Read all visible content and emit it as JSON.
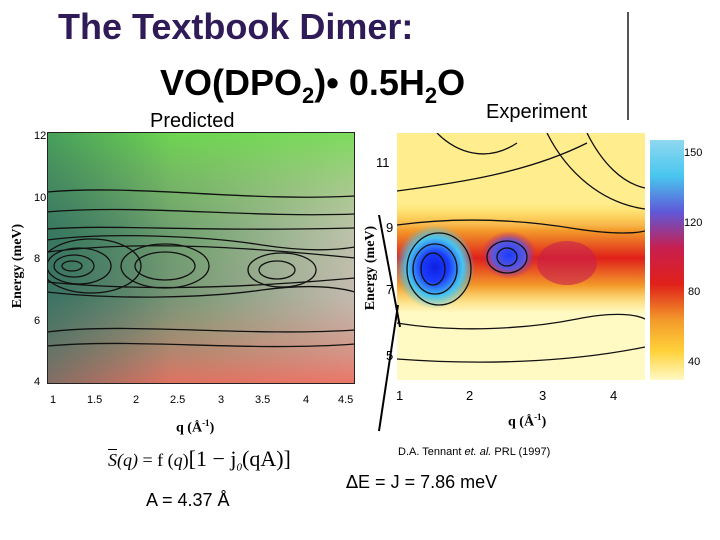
{
  "slide": {
    "title_line1": "The Textbook Dimer:",
    "title_line2_parts": [
      "VO(DPO",
      "2",
      ")• 0.5H",
      "2",
      "O"
    ],
    "predicted_label": "Predicted",
    "experiment_label": "Experiment"
  },
  "left_plot": {
    "ylabel": "Energy (meV)",
    "xlabel_main": "q (Å",
    "xlabel_sup": "-1",
    "xlabel_end": ")",
    "yticks": [
      "12",
      "10",
      "8",
      "6",
      "4"
    ],
    "xticks": [
      "1",
      "1.5",
      "2",
      "2.5",
      "3",
      "3.5",
      "4",
      "4.5"
    ]
  },
  "right_plot": {
    "ylabel": "Energy (meV)",
    "xlabel_main": "q (Å",
    "xlabel_sup": "-1",
    "xlabel_end": ")",
    "yticks": [
      "11",
      "9",
      "7",
      "5"
    ],
    "xticks": [
      "1",
      "2",
      "3",
      "4"
    ],
    "colorbar_ticks": [
      "150",
      "120",
      "80",
      "40"
    ],
    "citation_prefix": "D.A. Tennant ",
    "citation_italic": "et. al.",
    "citation_suffix": " PRL (1997)"
  },
  "formula": {
    "text": "S(q) = f(q)[1 − j0(qA)]",
    "s": "S",
    "q": "q",
    "eq_f": " = f (",
    "br": ")",
    "bracket": "[1 − j",
    "sub0": "0",
    "tail": "(qA)]",
    "a_value": "A = 4.37 Å"
  },
  "energy": {
    "delta": "∆",
    "rest": "E = J = 7.86 meV"
  },
  "colors": {
    "title_color": "#2e1b57",
    "cold": "#1a3cff",
    "hot": "#e0201a",
    "warm": "#ffd23a"
  }
}
